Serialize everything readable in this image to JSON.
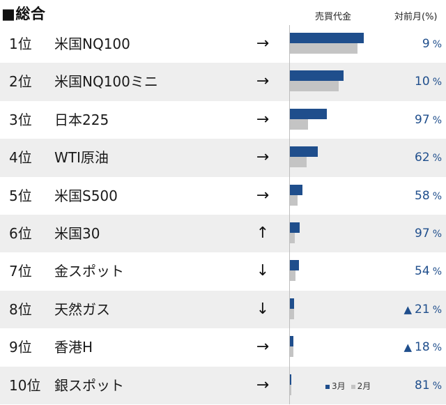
{
  "header": {
    "title": "■総合",
    "col_volume": "売買代金",
    "col_change": "対前月(%)"
  },
  "legend": {
    "current": "3月",
    "previous": "2月"
  },
  "colors": {
    "current_bar": "#1f4e8c",
    "previous_bar": "#c4c4c4",
    "change_text": "#1f4e8c",
    "row_alt": "#eeeeee"
  },
  "pct_symbol": "%",
  "rows": [
    {
      "rank": "1位",
      "name": "米国NQ100",
      "arrow": "→",
      "cur": 0.88,
      "prev": 0.81,
      "up": "",
      "change": "9"
    },
    {
      "rank": "2位",
      "name": "米国NQ100ミニ",
      "arrow": "→",
      "cur": 0.64,
      "prev": 0.58,
      "up": "",
      "change": "10"
    },
    {
      "rank": "3位",
      "name": "日本225",
      "arrow": "→",
      "cur": 0.44,
      "prev": 0.22,
      "up": "",
      "change": "97"
    },
    {
      "rank": "4位",
      "name": "WTI原油",
      "arrow": "→",
      "cur": 0.33,
      "prev": 0.2,
      "up": "",
      "change": "62"
    },
    {
      "rank": "5位",
      "name": "米国S500",
      "arrow": "→",
      "cur": 0.15,
      "prev": 0.09,
      "up": "",
      "change": "58"
    },
    {
      "rank": "6位",
      "name": "米国30",
      "arrow": "↑",
      "cur": 0.12,
      "prev": 0.06,
      "up": "",
      "change": "97"
    },
    {
      "rank": "7位",
      "name": "金スポット",
      "arrow": "↓",
      "cur": 0.11,
      "prev": 0.07,
      "up": "",
      "change": "54"
    },
    {
      "rank": "8位",
      "name": "天然ガス",
      "arrow": "↓",
      "cur": 0.05,
      "prev": 0.05,
      "up": "▲",
      "change": "21"
    },
    {
      "rank": "9位",
      "name": "香港H",
      "arrow": "→",
      "cur": 0.04,
      "prev": 0.04,
      "up": "▲",
      "change": "18"
    },
    {
      "rank": "10位",
      "name": "銀スポット",
      "arrow": "→",
      "cur": 0.01,
      "prev": 0.01,
      "up": "",
      "change": "81"
    }
  ]
}
